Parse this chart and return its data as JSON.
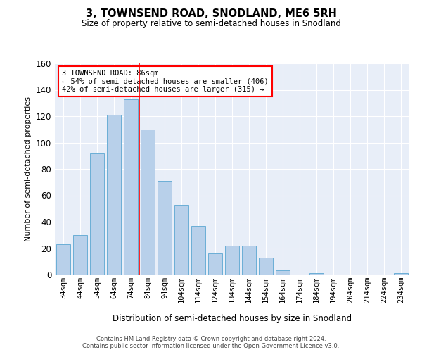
{
  "title": "3, TOWNSEND ROAD, SNODLAND, ME6 5RH",
  "subtitle": "Size of property relative to semi-detached houses in Snodland",
  "xlabel": "Distribution of semi-detached houses by size in Snodland",
  "ylabel": "Number of semi-detached properties",
  "categories": [
    "34sqm",
    "44sqm",
    "54sqm",
    "64sqm",
    "74sqm",
    "84sqm",
    "94sqm",
    "104sqm",
    "114sqm",
    "124sqm",
    "134sqm",
    "144sqm",
    "154sqm",
    "164sqm",
    "174sqm",
    "184sqm",
    "194sqm",
    "204sqm",
    "214sqm",
    "224sqm",
    "234sqm"
  ],
  "values": [
    23,
    30,
    92,
    121,
    133,
    110,
    71,
    53,
    37,
    16,
    22,
    22,
    13,
    3,
    0,
    1,
    0,
    0,
    0,
    0,
    1
  ],
  "bar_color": "#b8d0ea",
  "bar_edge_color": "#6aaed6",
  "annotation_title": "3 TOWNSEND ROAD: 86sqm",
  "annotation_line1": "← 54% of semi-detached houses are smaller (406)",
  "annotation_line2": "42% of semi-detached houses are larger (315) →",
  "red_line_x": 4.5,
  "ylim": [
    0,
    160
  ],
  "yticks": [
    0,
    20,
    40,
    60,
    80,
    100,
    120,
    140,
    160
  ],
  "bg_color": "#e8eef8",
  "grid_color": "#ffffff",
  "footer1": "Contains HM Land Registry data © Crown copyright and database right 2024.",
  "footer2": "Contains public sector information licensed under the Open Government Licence v3.0."
}
